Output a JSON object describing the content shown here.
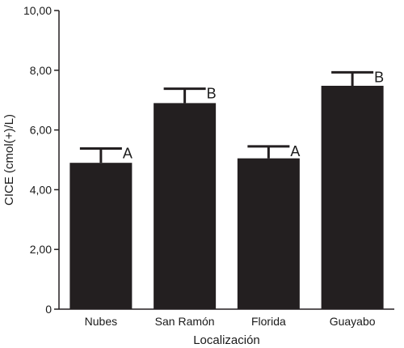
{
  "chart_data": {
    "type": "bar",
    "title": "",
    "xlabel": "Localización",
    "ylabel": "CICE (cmol(+)/L)",
    "categories": [
      "Nubes",
      "San Ramón",
      "Florida",
      "Guayabo"
    ],
    "values": [
      4.9,
      6.9,
      5.05,
      7.48
    ],
    "error_upper": [
      0.48,
      0.48,
      0.4,
      0.45
    ],
    "significance_labels": [
      "A",
      "B",
      "A",
      "B"
    ],
    "ylim": [
      0,
      10
    ],
    "y_ticks": [
      0,
      2,
      4,
      6,
      8,
      10
    ],
    "y_tick_labels": [
      "0",
      "2,00",
      "4,00",
      "6,00",
      "8,00",
      "10,00"
    ],
    "bar_color": "#231f20",
    "grid": false,
    "legend": "none"
  }
}
